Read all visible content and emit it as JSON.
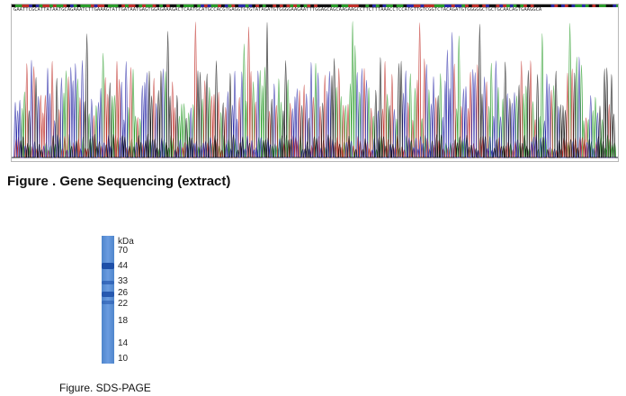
{
  "sequencing": {
    "sequence": "GAATTCGCATTATAATGCAGAAATCTTGAAAGTATTGATAATGAGTGGAGAAAGACTCAATGCATGCCACGTGAGGTGTGTATAGATGTGGGGAAGAATTTGGAGCAGCAAGAAGCCTTCTTTAAACCTCCATGTTGTCGGTCTACAGATGTGGGGGCTGCTGCAACAGTGAAGGCA",
    "trace_colors": [
      "#2a9d2a",
      "#c0302a",
      "#2a2aa8",
      "#111111"
    ]
  },
  "figure1": {
    "caption": "Figure . Gene Sequencing (extract)"
  },
  "gel": {
    "unit": "kDa",
    "markers": [
      "70",
      "44",
      "33",
      "26",
      "22",
      "18",
      "14",
      "10"
    ]
  },
  "figure2": {
    "caption": "Figure. SDS-PAGE"
  }
}
